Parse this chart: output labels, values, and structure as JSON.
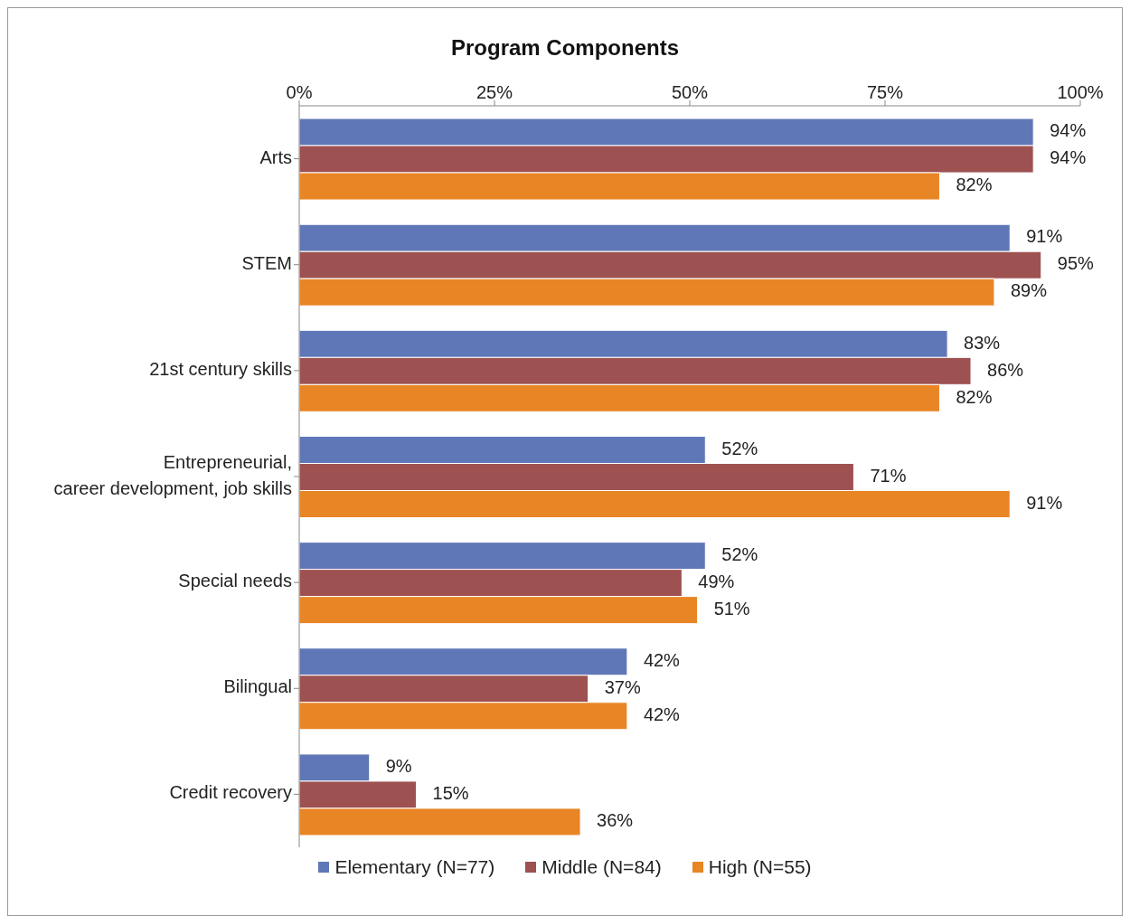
{
  "chart_data": {
    "type": "bar",
    "orientation": "horizontal",
    "title": "Program Components",
    "categories": [
      "Arts",
      "STEM",
      "21st century skills",
      "Entrepreneurial, career development, job skills",
      "Special needs",
      "Bilingual",
      "Credit recovery"
    ],
    "series": [
      {
        "name": "Elementary (N=77)",
        "color": "#6077b7",
        "values": [
          94,
          91,
          83,
          52,
          52,
          42,
          9
        ],
        "value_labels": [
          "94%",
          "91%",
          "83%",
          "52%",
          "52%",
          "42%",
          "9%"
        ]
      },
      {
        "name": "Middle (N=84)",
        "color": "#9e5151",
        "values": [
          94,
          95,
          86,
          71,
          49,
          37,
          15
        ],
        "value_labels": [
          "94%",
          "95%",
          "86%",
          "71%",
          "49%",
          "37%",
          "15%"
        ]
      },
      {
        "name": "High (N=55)",
        "color": "#e88525",
        "values": [
          82,
          89,
          82,
          91,
          51,
          42,
          36
        ],
        "value_labels": [
          "82%",
          "89%",
          "82%",
          "91%",
          "51%",
          "42%",
          "36%"
        ]
      }
    ],
    "xlim": [
      0,
      100
    ],
    "xticks": [
      {
        "value": 0,
        "label": "0%"
      },
      {
        "value": 25,
        "label": "25%"
      },
      {
        "value": 50,
        "label": "50%"
      },
      {
        "value": 75,
        "label": "75%"
      },
      {
        "value": 100,
        "label": "100%"
      }
    ],
    "grid": false,
    "legend": "bottom"
  }
}
